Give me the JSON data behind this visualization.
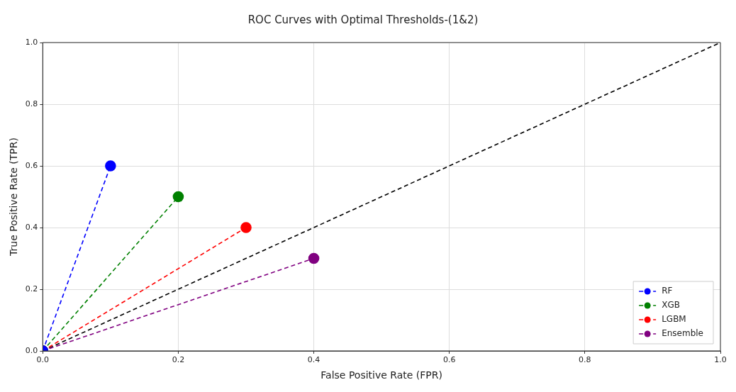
{
  "chart_data": {
    "type": "line",
    "title": "ROC Curves with Optimal Thresholds-(1&2)",
    "xlabel": "False Positive Rate (FPR)",
    "ylabel": "True Positive Rate (TPR)",
    "xlim": [
      0,
      1
    ],
    "ylim": [
      0,
      1
    ],
    "xticks": [
      {
        "value": 0,
        "label": "0.0"
      },
      0.2,
      0.4,
      0.6,
      0.8,
      {
        "value": 1,
        "label": "1.0"
      }
    ],
    "yticks": [
      {
        "value": 0,
        "label": "0.0"
      },
      0.2,
      0.4,
      0.6,
      0.8,
      {
        "value": 1,
        "label": "1.0"
      }
    ],
    "grid": true,
    "legend": "bottom right",
    "line_style": "dashed",
    "series": [
      {
        "name": "RF",
        "color": "#0000ff",
        "x": [
          0,
          0.1
        ],
        "values": [
          0,
          0.6
        ],
        "marker": "circle"
      },
      {
        "name": "XGB",
        "color": "#008000",
        "x": [
          0,
          0.2
        ],
        "values": [
          0,
          0.5
        ],
        "marker": "circle"
      },
      {
        "name": "LGBM",
        "color": "#ff0000",
        "x": [
          0,
          0.3
        ],
        "values": [
          0,
          0.4
        ],
        "marker": "circle"
      },
      {
        "name": "Ensemble",
        "color": "#800080",
        "x": [
          0,
          0.4
        ],
        "values": [
          0,
          0.3
        ],
        "marker": "circle"
      },
      {
        "color": "#000000",
        "x": [
          0,
          1
        ],
        "values": [
          0,
          1
        ],
        "marker": "none"
      }
    ]
  }
}
